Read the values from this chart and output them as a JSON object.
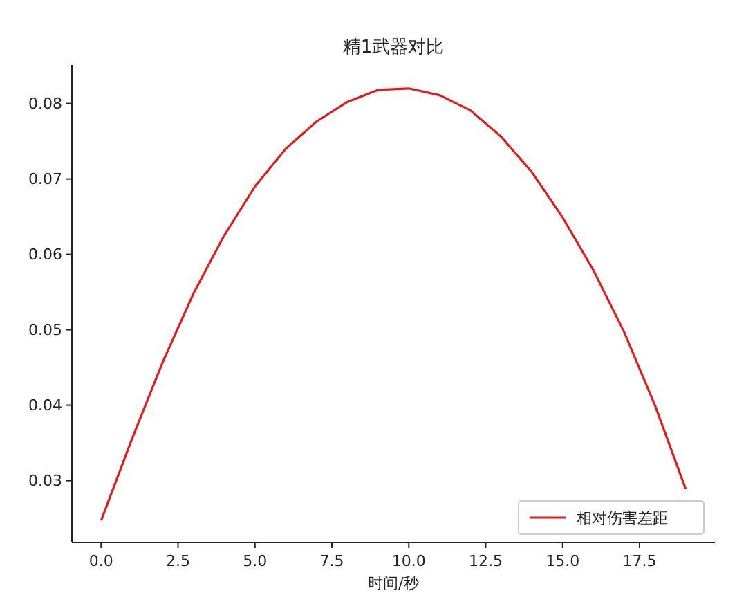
{
  "chart_data": {
    "type": "line",
    "title": "精1武器对比",
    "xlabel": "时间/秒",
    "x": [
      0,
      1,
      2,
      3,
      4,
      5,
      6,
      7,
      8,
      9,
      10,
      11,
      12,
      13,
      14,
      15,
      16,
      17,
      18,
      19
    ],
    "series": [
      {
        "name": "相对伤害差距",
        "color": "#e41a1c",
        "values": [
          0.0247,
          0.0355,
          0.0457,
          0.0548,
          0.0625,
          0.069,
          0.074,
          0.0776,
          0.0802,
          0.0818,
          0.082,
          0.0811,
          0.0791,
          0.0756,
          0.0709,
          0.0649,
          0.0579,
          0.0497,
          0.04,
          0.0289
        ]
      }
    ],
    "xlim": [
      -0.95,
      19.95
    ],
    "xticks": [
      {
        "value": 0,
        "label": "0.0"
      },
      {
        "value": 2.5,
        "label": "2.5"
      },
      {
        "value": 5,
        "label": "5.0"
      },
      {
        "value": 7.5,
        "label": "7.5"
      },
      {
        "value": 10,
        "label": "10.0"
      },
      {
        "value": 12.5,
        "label": "12.5"
      },
      {
        "value": 15,
        "label": "15.0"
      },
      {
        "value": 17.5,
        "label": "17.5"
      }
    ],
    "ylim": [
      0.0218,
      0.0851
    ],
    "yticks": [
      0.03,
      0.04,
      0.05,
      0.06,
      0.07,
      0.08
    ],
    "grid": false,
    "legend": "bottom right",
    "marker": "none",
    "line_style": "solid"
  }
}
